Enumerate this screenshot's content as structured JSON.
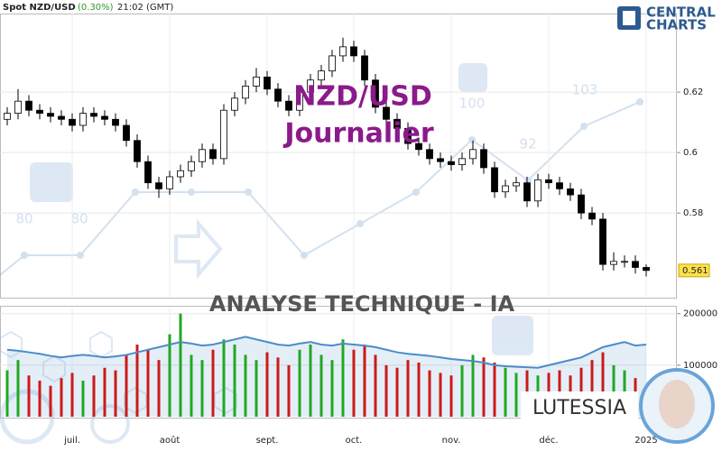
{
  "chart_data": {
    "type": "candlestick",
    "header": {
      "symbol": "Spot NZD/USD",
      "change": "(0.30%)",
      "time": "21:02 (GMT)"
    },
    "logo": [
      "CENTRAL",
      "CHARTS"
    ],
    "title": "NZD/USD",
    "subtitle": "Journalier",
    "banner": "ANALYSE TECHNIQUE - IA",
    "brand": "LUTESSIA",
    "background_labels": [
      80,
      80,
      100,
      92,
      103
    ],
    "categories": [
      null,
      null,
      null,
      null,
      null,
      null,
      "juil.",
      null,
      null,
      null,
      null,
      null,
      null,
      null,
      null,
      "août",
      null,
      null,
      null,
      null,
      null,
      null,
      null,
      null,
      "sept.",
      null,
      null,
      null,
      null,
      null,
      null,
      null,
      "oct.",
      null,
      null,
      null,
      null,
      null,
      null,
      null,
      null,
      "nov.",
      null,
      null,
      null,
      null,
      null,
      null,
      null,
      null,
      "déc.",
      null,
      null,
      null,
      null,
      null,
      null,
      null,
      null,
      "2025"
    ],
    "open": [
      0.611,
      0.613,
      0.617,
      0.614,
      0.613,
      0.612,
      0.611,
      0.609,
      0.613,
      0.612,
      0.611,
      0.609,
      0.604,
      0.597,
      0.59,
      0.588,
      0.592,
      0.594,
      0.597,
      0.601,
      0.598,
      0.614,
      0.618,
      0.622,
      0.625,
      0.621,
      0.617,
      0.614,
      0.62,
      0.624,
      0.627,
      0.632,
      0.635,
      0.632,
      0.624,
      0.615,
      0.611,
      0.608,
      0.603,
      0.601,
      0.598,
      0.597,
      0.596,
      0.598,
      0.601,
      0.595,
      0.587,
      0.589,
      0.59,
      0.584,
      0.591,
      0.59,
      0.588,
      0.586,
      0.58,
      0.578,
      0.563,
      0.564,
      0.564,
      0.562
    ],
    "high": [
      0.615,
      0.621,
      0.619,
      0.616,
      0.615,
      0.614,
      0.613,
      0.615,
      0.615,
      0.614,
      0.613,
      0.611,
      0.606,
      0.599,
      0.592,
      0.594,
      0.596,
      0.599,
      0.603,
      0.603,
      0.616,
      0.62,
      0.624,
      0.628,
      0.627,
      0.623,
      0.619,
      0.622,
      0.626,
      0.629,
      0.634,
      0.638,
      0.637,
      0.634,
      0.626,
      0.617,
      0.613,
      0.61,
      0.605,
      0.603,
      0.6,
      0.599,
      0.6,
      0.604,
      0.603,
      0.597,
      0.591,
      0.592,
      0.592,
      0.593,
      0.593,
      0.592,
      0.59,
      0.588,
      0.582,
      0.58,
      0.567,
      0.566,
      0.566,
      0.563
    ],
    "low": [
      0.609,
      0.611,
      0.612,
      0.611,
      0.61,
      0.609,
      0.607,
      0.607,
      0.61,
      0.609,
      0.607,
      0.602,
      0.595,
      0.588,
      0.585,
      0.586,
      0.59,
      0.592,
      0.595,
      0.596,
      0.596,
      0.612,
      0.616,
      0.62,
      0.619,
      0.615,
      0.612,
      0.612,
      0.618,
      0.622,
      0.625,
      0.63,
      0.63,
      0.622,
      0.613,
      0.609,
      0.606,
      0.601,
      0.599,
      0.596,
      0.595,
      0.594,
      0.594,
      0.596,
      0.593,
      0.585,
      0.585,
      0.587,
      0.582,
      0.582,
      0.588,
      0.586,
      0.584,
      0.578,
      0.576,
      0.561,
      0.561,
      0.562,
      0.56,
      0.559
    ],
    "close": [
      0.613,
      0.617,
      0.614,
      0.613,
      0.612,
      0.611,
      0.609,
      0.613,
      0.612,
      0.611,
      0.609,
      0.604,
      0.597,
      0.59,
      0.588,
      0.592,
      0.594,
      0.597,
      0.601,
      0.598,
      0.614,
      0.618,
      0.622,
      0.625,
      0.621,
      0.617,
      0.614,
      0.62,
      0.624,
      0.627,
      0.632,
      0.635,
      0.632,
      0.624,
      0.615,
      0.611,
      0.608,
      0.603,
      0.601,
      0.598,
      0.597,
      0.596,
      0.598,
      0.601,
      0.595,
      0.587,
      0.589,
      0.59,
      0.584,
      0.591,
      0.59,
      0.588,
      0.586,
      0.58,
      0.578,
      0.563,
      0.564,
      0.564,
      0.562,
      0.561
    ],
    "up_color": "#ffffff",
    "down_color": "#000000",
    "ylim": [
      0.552,
      0.646
    ],
    "yticks": [
      0.58,
      0.6,
      0.62
    ],
    "volume": [
      90000,
      110000,
      80000,
      70000,
      60000,
      75000,
      85000,
      70000,
      80000,
      95000,
      90000,
      120000,
      140000,
      130000,
      110000,
      160000,
      200000,
      120000,
      110000,
      130000,
      150000,
      140000,
      120000,
      110000,
      125000,
      115000,
      100000,
      130000,
      140000,
      120000,
      110000,
      150000,
      130000,
      140000,
      120000,
      100000,
      95000,
      110000,
      105000,
      90000,
      85000,
      80000,
      100000,
      120000,
      115000,
      105000,
      95000,
      85000,
      90000,
      80000,
      85000,
      90000,
      80000,
      95000,
      110000,
      125000,
      100000,
      90000,
      75000,
      60000
    ],
    "volume_ma": [
      130000,
      128000,
      125000,
      122000,
      118000,
      115000,
      118000,
      120000,
      118000,
      115000,
      117000,
      120000,
      125000,
      130000,
      135000,
      140000,
      145000,
      142000,
      138000,
      140000,
      145000,
      150000,
      155000,
      150000,
      145000,
      140000,
      138000,
      142000,
      145000,
      140000,
      138000,
      142000,
      140000,
      138000,
      135000,
      130000,
      125000,
      122000,
      120000,
      118000,
      115000,
      112000,
      110000,
      108000,
      105000,
      100000,
      98000,
      97000,
      96000,
      95000,
      100000,
      105000,
      110000,
      115000,
      125000,
      135000,
      140000,
      145000,
      138000,
      140000
    ],
    "volume_up_color": "#22a822",
    "volume_down_color": "#cc1a1a",
    "volume_ma_color": "#4a8cc8",
    "y2lim": [
      0,
      210000
    ],
    "y2ticks": [
      100000,
      200000
    ],
    "grid": true
  }
}
